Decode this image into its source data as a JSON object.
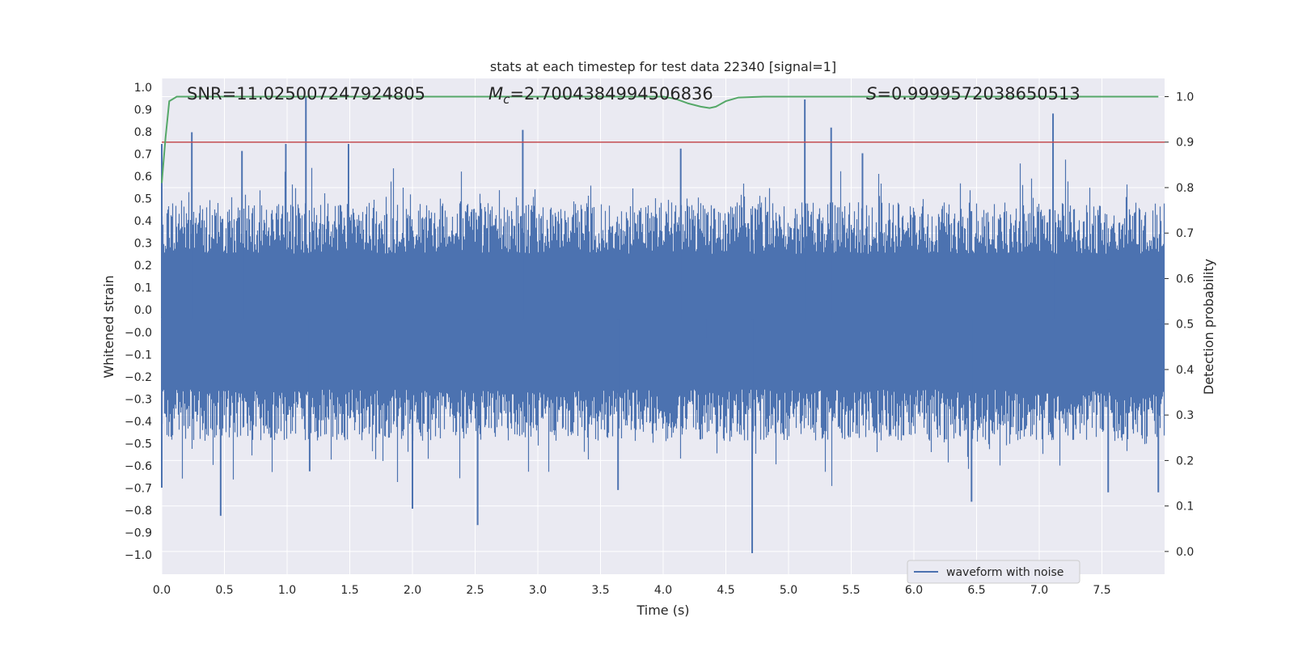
{
  "chart_data": {
    "type": "line",
    "title": "stats at each timestep for test data 22340 [signal=1]",
    "xlabel": "Time (s)",
    "ylabel_left": "Whitened strain",
    "ylabel_right": "Detection probability",
    "xlim": [
      0.0,
      8.0
    ],
    "ylim_left": [
      -1.09,
      1.03
    ],
    "ylim_right": [
      -0.05,
      1.04
    ],
    "x_ticks": [
      "0.0",
      "0.5",
      "1.0",
      "1.5",
      "2.0",
      "2.5",
      "3.0",
      "3.5",
      "4.0",
      "4.5",
      "5.0",
      "5.5",
      "6.0",
      "6.5",
      "7.0",
      "7.5"
    ],
    "x_tick_values": [
      0.0,
      0.5,
      1.0,
      1.5,
      2.0,
      2.5,
      3.0,
      3.5,
      4.0,
      4.5,
      5.0,
      5.5,
      6.0,
      6.5,
      7.0,
      7.5
    ],
    "y_left_ticks": [
      "1.0",
      "0.9",
      "0.8",
      "0.7",
      "0.6",
      "0.5",
      "0.4",
      "0.3",
      "0.2",
      "0.1",
      "0.0",
      "−0.0",
      "−0.1",
      "−0.2",
      "−0.3",
      "−0.4",
      "−0.5",
      "−0.6",
      "−0.7",
      "−0.8",
      "−0.9",
      "−1.0"
    ],
    "y_right_ticks": [
      "1.0",
      "0.9",
      "0.8",
      "0.7",
      "0.6",
      "0.5",
      "0.4",
      "0.3",
      "0.2",
      "0.1",
      "0.0"
    ],
    "y_right_tick_values": [
      1.0,
      0.9,
      0.8,
      0.7,
      0.6,
      0.5,
      0.4,
      0.3,
      0.2,
      0.1,
      0.0
    ],
    "annotations": {
      "snr": "SNR=11.025007247924805",
      "mc_prefix": "M",
      "mc_sub": "c",
      "mc_value": "=2.7004384994506836",
      "s_prefix": "S",
      "s_value": "=0.9999572038650513"
    },
    "threshold": {
      "value": 0.9,
      "axis": "right",
      "color": "#c44e52"
    },
    "series": [
      {
        "name": "waveform with noise",
        "axis": "left",
        "color": "#4c72b0",
        "description_peaks": [
          {
            "x": 0.0,
            "y": 0.75
          },
          {
            "x": 0.0,
            "y": -0.72
          },
          {
            "x": 0.24,
            "y": 0.8
          },
          {
            "x": 0.47,
            "y": -0.84
          },
          {
            "x": 0.64,
            "y": 0.72
          },
          {
            "x": 0.99,
            "y": 0.75
          },
          {
            "x": 1.15,
            "y": 0.95
          },
          {
            "x": 1.18,
            "y": -0.65
          },
          {
            "x": 1.49,
            "y": 0.75
          },
          {
            "x": 2.0,
            "y": -0.81
          },
          {
            "x": 2.52,
            "y": -0.88
          },
          {
            "x": 2.88,
            "y": 0.81
          },
          {
            "x": 3.64,
            "y": -0.73
          },
          {
            "x": 4.14,
            "y": 0.73
          },
          {
            "x": 4.34,
            "y": -0.08
          },
          {
            "x": 4.71,
            "y": -1.0
          },
          {
            "x": 5.13,
            "y": 0.94
          },
          {
            "x": 5.34,
            "y": 0.82
          },
          {
            "x": 5.59,
            "y": 0.71
          },
          {
            "x": 6.46,
            "y": -0.78
          },
          {
            "x": 7.11,
            "y": 0.88
          },
          {
            "x": 7.55,
            "y": -0.74
          },
          {
            "x": 7.95,
            "y": -0.74
          }
        ]
      },
      {
        "name": "",
        "axis": "right",
        "color": "#55a868",
        "x": [
          0.0,
          0.03,
          0.06,
          0.12,
          0.5,
          1.0,
          2.0,
          3.0,
          3.9,
          4.0,
          4.1,
          4.2,
          4.3,
          4.37,
          4.42,
          4.5,
          4.6,
          4.8,
          5.0,
          6.0,
          7.0,
          7.95
        ],
        "y": [
          0.81,
          0.91,
          0.99,
          1.0,
          1.0,
          1.0,
          1.0,
          1.0,
          1.0,
          1.0,
          0.995,
          0.985,
          0.978,
          0.975,
          0.978,
          0.99,
          0.998,
          1.0,
          1.0,
          1.0,
          1.0,
          1.0
        ]
      }
    ],
    "legend": {
      "placement": "lower-right",
      "label": "waveform with noise"
    },
    "grid": true,
    "colors": {
      "axes_bg": "#eaeaf2",
      "grid": "#ffffff",
      "waveform": "#4c72b0",
      "probability": "#55a868",
      "threshold": "#c44e52"
    }
  }
}
